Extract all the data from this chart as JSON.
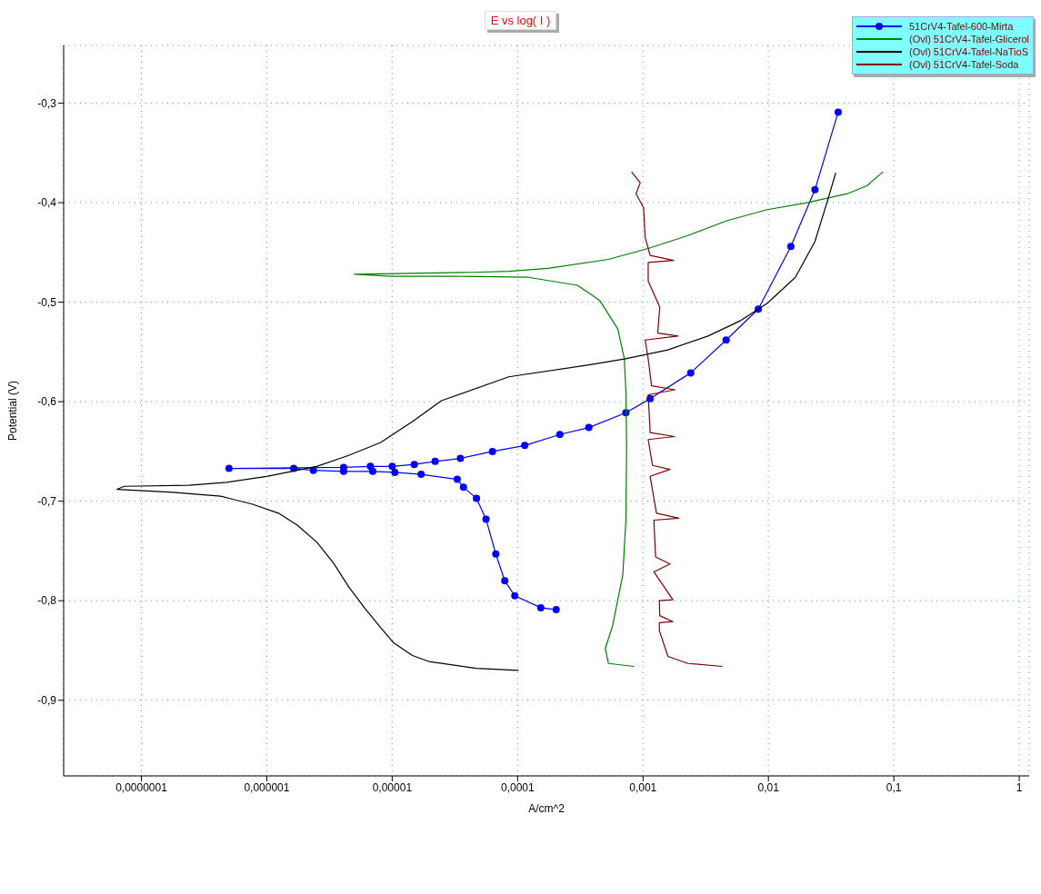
{
  "chart_data": {
    "type": "line",
    "title": "E vs log( I )",
    "xlabel": "A/cm^2",
    "ylabel": "Potential (V)",
    "log": "x",
    "grid": true,
    "legend": "top right",
    "xlim": [
      2.4e-08,
      1.2
    ],
    "ylim": [
      -0.976,
      -0.242
    ],
    "xticks": [
      {
        "value": 1e-07,
        "label": "0,0000001"
      },
      {
        "value": 1e-06,
        "label": "0,000001"
      },
      {
        "value": 1e-05,
        "label": "0,00001"
      },
      {
        "value": 0.0001,
        "label": "0,0001"
      },
      {
        "value": 0.001,
        "label": "0,001"
      },
      {
        "value": 0.01,
        "label": "0,01"
      },
      {
        "value": 0.1,
        "label": "0,1"
      },
      {
        "value": 1,
        "label": "1"
      }
    ],
    "yticks": [
      {
        "value": -0.3,
        "label": "-0,3"
      },
      {
        "value": -0.4,
        "label": "-0,4"
      },
      {
        "value": -0.5,
        "label": "-0,5"
      },
      {
        "value": -0.6,
        "label": "-0,6"
      },
      {
        "value": -0.7,
        "label": "-0,7"
      },
      {
        "value": -0.8,
        "label": "-0,8"
      },
      {
        "value": -0.9,
        "label": "-0,9"
      }
    ],
    "series": [
      {
        "name": "51CrV4-Tafel-600-Mirta",
        "color": "#0000ff",
        "marker": "circle",
        "x": [
          0.000203,
          0.000153,
          9.5e-05,
          7.9e-05,
          6.7e-05,
          5.6e-05,
          4.7e-05,
          3.7e-05,
          3.3e-05,
          1.7e-05,
          1.05e-05,
          7e-06,
          4.1e-06,
          2.35e-06,
          1.64e-06,
          5e-07,
          4.1e-06,
          6.7e-06,
          1e-05,
          1.5e-05,
          2.2e-05,
          3.5e-05,
          6.3e-05,
          0.000114,
          0.000217,
          0.00037,
          0.00073,
          0.00114,
          0.0024,
          0.0046,
          0.0083,
          0.0151,
          0.0235,
          0.036
        ],
        "values": [
          -0.809,
          -0.807,
          -0.795,
          -0.78,
          -0.753,
          -0.718,
          -0.697,
          -0.686,
          -0.678,
          -0.673,
          -0.671,
          -0.67,
          -0.67,
          -0.669,
          -0.667,
          -0.667,
          -0.666,
          -0.665,
          -0.665,
          -0.663,
          -0.66,
          -0.657,
          -0.65,
          -0.644,
          -0.633,
          -0.626,
          -0.611,
          -0.597,
          -0.571,
          -0.538,
          -0.507,
          -0.444,
          -0.387,
          -0.309
        ]
      },
      {
        "name": "(Ovl) 51CrV4-Tafel-Glicerol",
        "color": "#008000",
        "marker": "none",
        "x": [
          0.00085,
          0.00053,
          0.0005,
          0.00057,
          0.00069,
          0.00073,
          0.00074,
          0.00073,
          0.00071,
          0.00063,
          0.00045,
          0.0003,
          0.000122,
          3.2e-05,
          1e-05,
          5e-06,
          1.39e-05,
          4.4e-05,
          8.5e-05,
          0.000175,
          0.00053,
          0.0011,
          0.00228,
          0.0047,
          0.0098,
          0.0203,
          0.0426,
          0.061,
          0.082
        ],
        "values": [
          -0.866,
          -0.863,
          -0.848,
          -0.826,
          -0.774,
          -0.719,
          -0.645,
          -0.59,
          -0.557,
          -0.527,
          -0.498,
          -0.483,
          -0.475,
          -0.474,
          -0.474,
          -0.472,
          -0.471,
          -0.47,
          -0.469,
          -0.466,
          -0.457,
          -0.446,
          -0.433,
          -0.418,
          -0.407,
          -0.4,
          -0.391,
          -0.383,
          -0.369
        ]
      },
      {
        "name": "(Ovl) 51CrV4-Tafel-NaTioS",
        "color": "#000000",
        "marker": "none",
        "x": [
          0.000102,
          4.7e-05,
          1.96e-05,
          1.45e-05,
          1.02e-05,
          8.1e-06,
          6e-06,
          4.5e-06,
          3.4e-06,
          2.5e-06,
          1.75e-06,
          1.24e-06,
          7.7e-07,
          4.3e-07,
          1.78e-07,
          6.4e-08,
          7.3e-08,
          2.4e-07,
          4.8e-07,
          1e-06,
          2.5e-06,
          4.5e-06,
          8.1e-06,
          1.45e-05,
          2.47e-05,
          8.5e-05,
          0.00037,
          0.00071,
          0.00158,
          0.0033,
          0.0059,
          0.0098,
          0.0164,
          0.0235,
          0.0296,
          0.0344
        ],
        "values": [
          -0.87,
          -0.868,
          -0.861,
          -0.855,
          -0.842,
          -0.827,
          -0.807,
          -0.786,
          -0.762,
          -0.741,
          -0.724,
          -0.712,
          -0.703,
          -0.695,
          -0.691,
          -0.688,
          -0.685,
          -0.684,
          -0.681,
          -0.675,
          -0.665,
          -0.654,
          -0.641,
          -0.62,
          -0.599,
          -0.575,
          -0.563,
          -0.557,
          -0.548,
          -0.534,
          -0.519,
          -0.501,
          -0.475,
          -0.439,
          -0.398,
          -0.37
        ]
      },
      {
        "name": "(Ovl) 51CrV4-Tafel-Soda",
        "color": "#800000",
        "marker": "none",
        "x": [
          0.0043,
          0.00228,
          0.00158,
          0.00135,
          0.00135,
          0.00173,
          0.00136,
          0.00135,
          0.00173,
          0.00122,
          0.00164,
          0.00126,
          0.00122,
          0.00193,
          0.00128,
          0.00114,
          0.00164,
          0.00119,
          0.0011,
          0.00178,
          0.00114,
          0.0011,
          0.0018,
          0.00117,
          0.0011,
          0.00104,
          0.0019,
          0.00131,
          0.00136,
          0.0011,
          0.0011,
          0.00175,
          0.00114,
          0.00104,
          0.00101,
          0.00088,
          0.00095,
          0.00081
        ],
        "values": [
          -0.866,
          -0.863,
          -0.856,
          -0.83,
          -0.822,
          -0.821,
          -0.815,
          -0.8,
          -0.799,
          -0.771,
          -0.763,
          -0.756,
          -0.719,
          -0.717,
          -0.712,
          -0.675,
          -0.668,
          -0.664,
          -0.638,
          -0.635,
          -0.631,
          -0.593,
          -0.588,
          -0.584,
          -0.557,
          -0.538,
          -0.534,
          -0.531,
          -0.505,
          -0.479,
          -0.46,
          -0.458,
          -0.453,
          -0.435,
          -0.405,
          -0.391,
          -0.38,
          -0.369
        ]
      }
    ]
  }
}
